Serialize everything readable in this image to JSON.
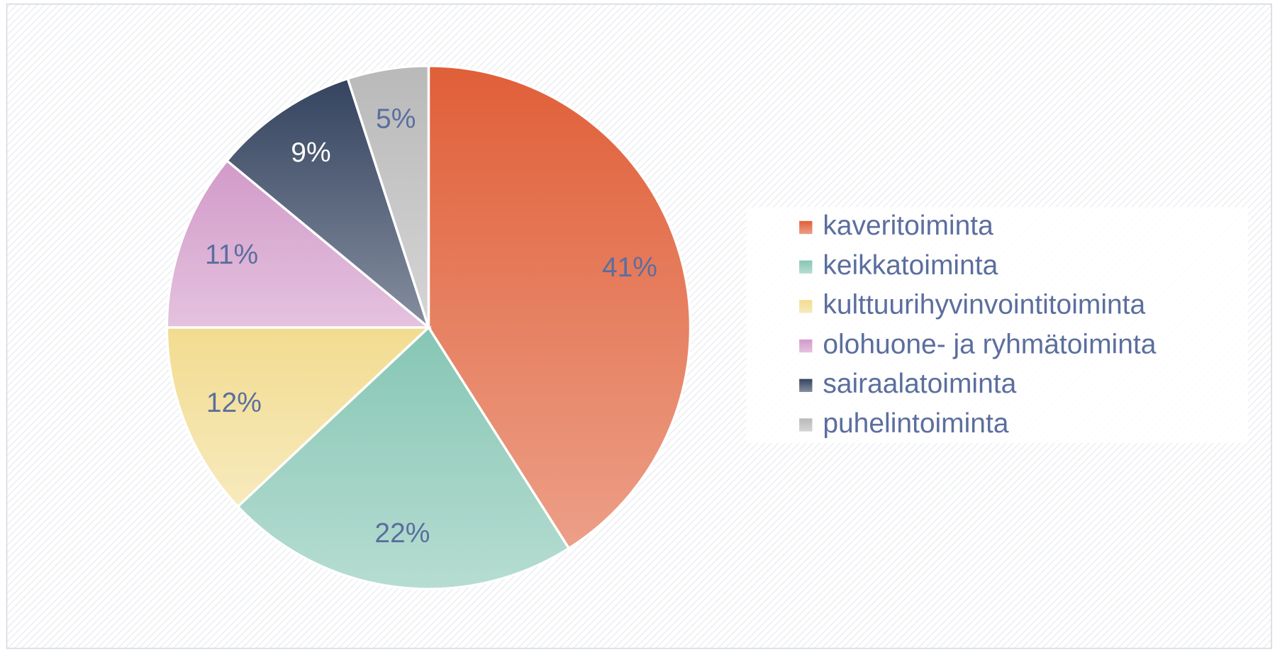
{
  "chart_data": {
    "type": "pie",
    "categories": [
      "kaveritoiminta",
      "keikkatoiminta",
      "kulttuurihyvinvointitoiminta",
      "olohuone- ja ryhmätoiminta",
      "sairaalatoiminta",
      "puhelintoiminta"
    ],
    "values": [
      41,
      22,
      12,
      11,
      9,
      5
    ],
    "value_labels": [
      "41%",
      "22%",
      "12%",
      "11%",
      "9%",
      "5%"
    ],
    "colors": [
      "#e05f38",
      "#86c6b4",
      "#f2dc90",
      "#d29ac9",
      "#34435f",
      "#b9b9b9"
    ],
    "legend": "right"
  }
}
